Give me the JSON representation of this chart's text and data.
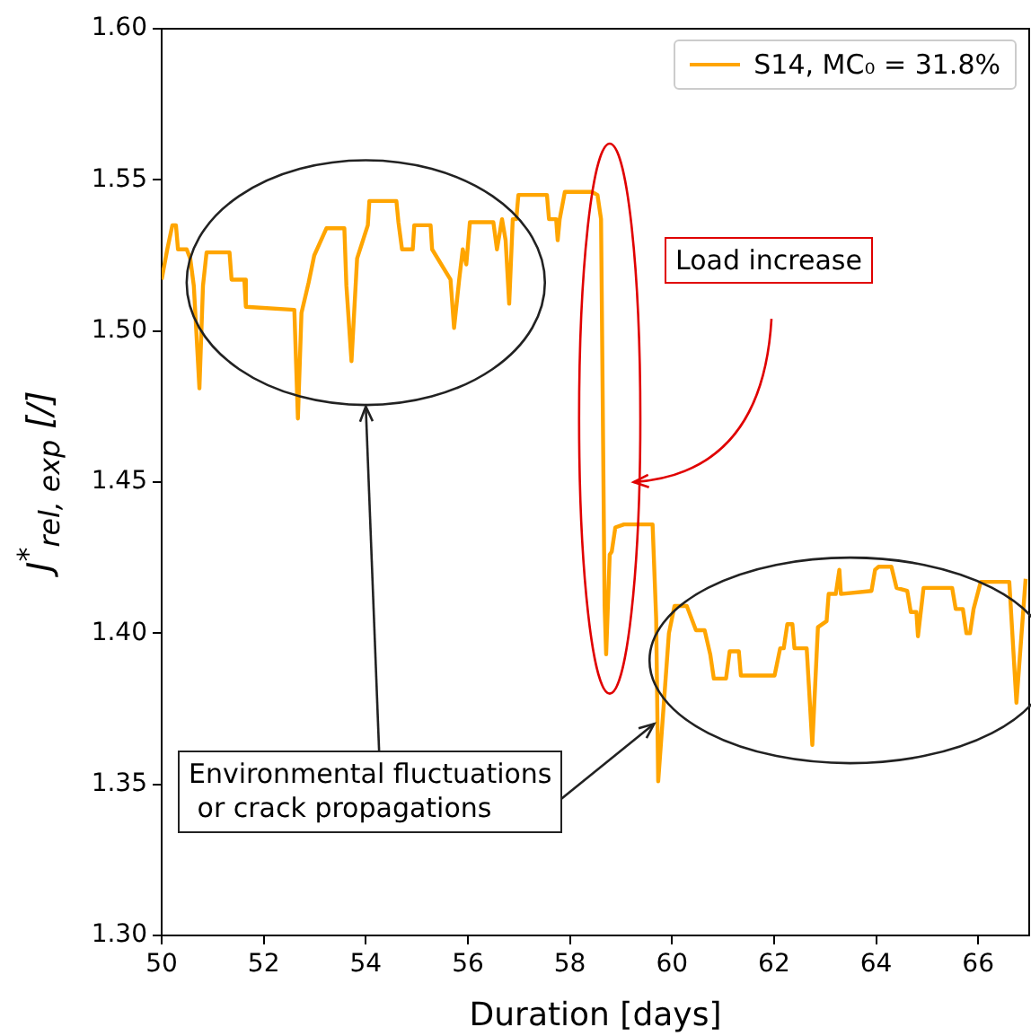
{
  "chart_data": {
    "type": "line",
    "xlabel": "Duration [days]",
    "ylabel": "J$^{*}$$_{rel, exp}$ [/]",
    "xlim": [
      50,
      67
    ],
    "xticks": [
      50,
      52,
      54,
      56,
      58,
      60,
      62,
      64,
      66
    ],
    "ylim": [
      1.3,
      1.6
    ],
    "yticks": [
      {
        "value": 1.3,
        "label": "1.30"
      },
      {
        "value": 1.35,
        "label": "1.35"
      },
      {
        "value": 1.4,
        "label": "1.40"
      },
      {
        "value": 1.45,
        "label": "1.45"
      },
      {
        "value": 1.5,
        "label": "1.50"
      },
      {
        "value": 1.55,
        "label": "1.55"
      },
      {
        "value": 1.6,
        "label": "1.60"
      }
    ],
    "grid": false,
    "legend": "top right",
    "marker": "none",
    "line_style": "solid",
    "annotations": [
      "Load increase",
      {
        "text": "Environmental fluctuations\n or crack propagations",
        "x": 59.65,
        "y": 1.37
      }
    ],
    "series": [
      {
        "name": "S14, MC₀ = 31.8%",
        "color": "#ffa500",
        "x": [
          50.0,
          50.11,
          50.21,
          50.28,
          50.32,
          50.49,
          50.56,
          50.63,
          50.74,
          50.81,
          50.88,
          51.33,
          51.37,
          51.62,
          51.65,
          52.6,
          52.67,
          52.74,
          52.88,
          52.99,
          53.23,
          53.58,
          53.62,
          53.72,
          53.83,
          54.04,
          54.07,
          54.6,
          54.64,
          54.71,
          54.92,
          54.95,
          55.27,
          55.3,
          55.66,
          55.73,
          55.83,
          55.9,
          55.97,
          56.04,
          56.5,
          56.57,
          56.67,
          56.74,
          56.81,
          56.88,
          56.95,
          56.99,
          57.55,
          57.59,
          57.73,
          57.76,
          57.8,
          57.9,
          58.43,
          58.54,
          58.61,
          58.68,
          58.71,
          58.78,
          58.82,
          58.89,
          59.06,
          59.62,
          59.69,
          59.73,
          59.94,
          60.05,
          60.29,
          60.47,
          60.64,
          60.75,
          60.82,
          61.06,
          61.13,
          61.31,
          61.35,
          62.01,
          62.12,
          62.19,
          62.26,
          62.36,
          62.4,
          62.64,
          62.75,
          62.86,
          63.03,
          63.07,
          63.21,
          63.28,
          63.31,
          63.91,
          63.98,
          64.05,
          64.3,
          64.4,
          64.61,
          64.68,
          64.79,
          64.82,
          64.93,
          65.49,
          65.56,
          65.7,
          65.77,
          65.84,
          65.91,
          66.05,
          66.61,
          66.75,
          66.93
        ],
        "values": [
          1.517,
          1.527,
          1.535,
          1.535,
          1.527,
          1.527,
          1.524,
          1.515,
          1.481,
          1.515,
          1.526,
          1.526,
          1.517,
          1.517,
          1.508,
          1.507,
          1.471,
          1.506,
          1.516,
          1.525,
          1.534,
          1.534,
          1.515,
          1.49,
          1.524,
          1.535,
          1.543,
          1.543,
          1.536,
          1.527,
          1.527,
          1.535,
          1.535,
          1.527,
          1.517,
          1.501,
          1.517,
          1.527,
          1.522,
          1.536,
          1.536,
          1.527,
          1.537,
          1.53,
          1.509,
          1.537,
          1.537,
          1.545,
          1.545,
          1.537,
          1.537,
          1.53,
          1.537,
          1.546,
          1.546,
          1.545,
          1.537,
          1.409,
          1.393,
          1.426,
          1.427,
          1.435,
          1.436,
          1.436,
          1.405,
          1.351,
          1.4,
          1.409,
          1.409,
          1.401,
          1.401,
          1.393,
          1.385,
          1.385,
          1.394,
          1.394,
          1.386,
          1.386,
          1.395,
          1.395,
          1.403,
          1.403,
          1.395,
          1.395,
          1.363,
          1.402,
          1.404,
          1.413,
          1.413,
          1.421,
          1.413,
          1.414,
          1.421,
          1.422,
          1.422,
          1.415,
          1.414,
          1.407,
          1.407,
          1.399,
          1.415,
          1.415,
          1.408,
          1.408,
          1.4,
          1.4,
          1.408,
          1.417,
          1.417,
          1.377,
          1.418
        ]
      }
    ]
  }
}
